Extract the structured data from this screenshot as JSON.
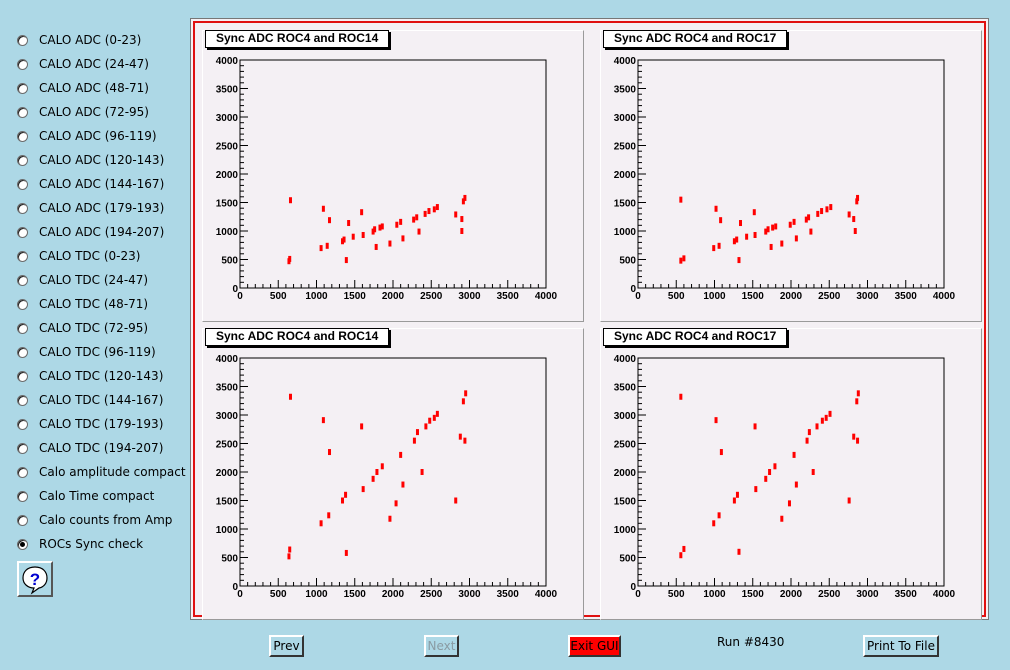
{
  "sidebar": {
    "options": [
      {
        "label": "CALO ADC (0-23)",
        "selected": false
      },
      {
        "label": "CALO ADC (24-47)",
        "selected": false
      },
      {
        "label": "CALO ADC (48-71)",
        "selected": false
      },
      {
        "label": "CALO ADC (72-95)",
        "selected": false
      },
      {
        "label": "CALO ADC (96-119)",
        "selected": false
      },
      {
        "label": "CALO ADC (120-143)",
        "selected": false
      },
      {
        "label": "CALO ADC (144-167)",
        "selected": false
      },
      {
        "label": "CALO ADC (179-193)",
        "selected": false
      },
      {
        "label": "CALO ADC (194-207)",
        "selected": false
      },
      {
        "label": "CALO TDC (0-23)",
        "selected": false
      },
      {
        "label": "CALO TDC (24-47)",
        "selected": false
      },
      {
        "label": "CALO TDC (48-71)",
        "selected": false
      },
      {
        "label": "CALO TDC (72-95)",
        "selected": false
      },
      {
        "label": "CALO TDC (96-119)",
        "selected": false
      },
      {
        "label": "CALO TDC (120-143)",
        "selected": false
      },
      {
        "label": "CALO TDC (144-167)",
        "selected": false
      },
      {
        "label": "CALO TDC (179-193)",
        "selected": false
      },
      {
        "label": "CALO TDC (194-207)",
        "selected": false
      },
      {
        "label": "Calo amplitude compact",
        "selected": false
      },
      {
        "label": "Calo Time compact",
        "selected": false
      },
      {
        "label": "Calo counts from Amp",
        "selected": false
      },
      {
        "label": "ROCs Sync check",
        "selected": true
      }
    ],
    "help_icon": "question-mark-icon",
    "help_glyph": "?"
  },
  "colors": {
    "background": "#add8e6",
    "canvas_border": "#e01010",
    "marker": "#ff0000",
    "pad_fill": "#f4f0f4"
  },
  "chart_data": [
    {
      "type": "scatter",
      "title": "Sync ADC ROC4 and ROC14",
      "xlim": [
        0,
        4000
      ],
      "ylim": [
        0,
        4000
      ],
      "xticks": [
        "0",
        "500",
        "1000",
        "1500",
        "2000",
        "2500",
        "3000",
        "3500",
        "4000"
      ],
      "yticks": [
        "0",
        "500",
        "1000",
        "1500",
        "2000",
        "2500",
        "3000",
        "3500",
        "4000"
      ],
      "color": "#ff0000",
      "points": [
        [
          640,
          470
        ],
        [
          650,
          510
        ],
        [
          660,
          1540
        ],
        [
          1060,
          700
        ],
        [
          1090,
          1390
        ],
        [
          1140,
          740
        ],
        [
          1170,
          1190
        ],
        [
          1340,
          820
        ],
        [
          1360,
          850
        ],
        [
          1390,
          490
        ],
        [
          1420,
          1140
        ],
        [
          1480,
          900
        ],
        [
          1590,
          1330
        ],
        [
          1610,
          930
        ],
        [
          1740,
          990
        ],
        [
          1760,
          1030
        ],
        [
          1780,
          720
        ],
        [
          1830,
          1060
        ],
        [
          1860,
          1080
        ],
        [
          1960,
          780
        ],
        [
          2050,
          1110
        ],
        [
          2100,
          1160
        ],
        [
          2130,
          870
        ],
        [
          2270,
          1200
        ],
        [
          2310,
          1240
        ],
        [
          2340,
          990
        ],
        [
          2420,
          1300
        ],
        [
          2470,
          1350
        ],
        [
          2540,
          1380
        ],
        [
          2580,
          1420
        ],
        [
          2820,
          1290
        ],
        [
          2900,
          1210
        ],
        [
          2920,
          1520
        ],
        [
          2940,
          1580
        ],
        [
          2900,
          1000
        ]
      ]
    },
    {
      "type": "scatter",
      "title": "Sync ADC ROC4 and ROC17",
      "xlim": [
        0,
        4000
      ],
      "ylim": [
        0,
        4000
      ],
      "xticks": [
        "0",
        "500",
        "1000",
        "1500",
        "2000",
        "2500",
        "3000",
        "3500",
        "4000"
      ],
      "yticks": [
        "0",
        "500",
        "1000",
        "1500",
        "2000",
        "2500",
        "3000",
        "3500",
        "4000"
      ],
      "color": "#ff0000",
      "points": [
        [
          560,
          480
        ],
        [
          600,
          520
        ],
        [
          560,
          1550
        ],
        [
          990,
          700
        ],
        [
          1020,
          1390
        ],
        [
          1060,
          740
        ],
        [
          1080,
          1190
        ],
        [
          1260,
          820
        ],
        [
          1290,
          850
        ],
        [
          1320,
          490
        ],
        [
          1340,
          1140
        ],
        [
          1420,
          900
        ],
        [
          1520,
          1330
        ],
        [
          1530,
          930
        ],
        [
          1670,
          990
        ],
        [
          1700,
          1030
        ],
        [
          1740,
          720
        ],
        [
          1760,
          1060
        ],
        [
          1800,
          1080
        ],
        [
          1880,
          780
        ],
        [
          1990,
          1110
        ],
        [
          2040,
          1160
        ],
        [
          2070,
          870
        ],
        [
          2200,
          1200
        ],
        [
          2230,
          1240
        ],
        [
          2260,
          990
        ],
        [
          2350,
          1300
        ],
        [
          2400,
          1350
        ],
        [
          2470,
          1380
        ],
        [
          2520,
          1420
        ],
        [
          2760,
          1290
        ],
        [
          2820,
          1210
        ],
        [
          2860,
          1520
        ],
        [
          2870,
          1580
        ],
        [
          2840,
          1000
        ]
      ]
    },
    {
      "type": "scatter",
      "title": "Sync ADC ROC4 and ROC14",
      "xlim": [
        0,
        4000
      ],
      "ylim": [
        0,
        4000
      ],
      "xticks": [
        "0",
        "500",
        "1000",
        "1500",
        "2000",
        "2500",
        "3000",
        "3500",
        "4000"
      ],
      "yticks": [
        "0",
        "500",
        "1000",
        "1500",
        "2000",
        "2500",
        "3000",
        "3500",
        "4000"
      ],
      "color": "#ff0000",
      "points": [
        [
          640,
          520
        ],
        [
          650,
          640
        ],
        [
          660,
          3320
        ],
        [
          1060,
          1100
        ],
        [
          1090,
          2910
        ],
        [
          1160,
          1240
        ],
        [
          1170,
          2350
        ],
        [
          1340,
          1500
        ],
        [
          1380,
          1600
        ],
        [
          1390,
          580
        ],
        [
          1590,
          2800
        ],
        [
          1610,
          1700
        ],
        [
          1740,
          1880
        ],
        [
          1790,
          2000
        ],
        [
          1860,
          2100
        ],
        [
          1960,
          1180
        ],
        [
          2040,
          1450
        ],
        [
          2100,
          2300
        ],
        [
          2130,
          1780
        ],
        [
          2280,
          2550
        ],
        [
          2320,
          2700
        ],
        [
          2380,
          2000
        ],
        [
          2430,
          2800
        ],
        [
          2480,
          2900
        ],
        [
          2540,
          2950
        ],
        [
          2580,
          3020
        ],
        [
          2820,
          1500
        ],
        [
          2880,
          2620
        ],
        [
          2920,
          3240
        ],
        [
          2950,
          3380
        ],
        [
          2940,
          2550
        ]
      ]
    },
    {
      "type": "scatter",
      "title": "Sync ADC ROC4 and ROC17",
      "xlim": [
        0,
        4000
      ],
      "ylim": [
        0,
        4000
      ],
      "xticks": [
        "0",
        "500",
        "1000",
        "1500",
        "2000",
        "2500",
        "3000",
        "3500",
        "4000"
      ],
      "yticks": [
        "0",
        "500",
        "1000",
        "1500",
        "2000",
        "2500",
        "3000",
        "3500",
        "4000"
      ],
      "color": "#ff0000",
      "points": [
        [
          560,
          540
        ],
        [
          600,
          650
        ],
        [
          560,
          3320
        ],
        [
          990,
          1100
        ],
        [
          1020,
          2910
        ],
        [
          1060,
          1240
        ],
        [
          1090,
          2350
        ],
        [
          1260,
          1500
        ],
        [
          1300,
          1600
        ],
        [
          1320,
          600
        ],
        [
          1530,
          2800
        ],
        [
          1540,
          1700
        ],
        [
          1670,
          1880
        ],
        [
          1720,
          2000
        ],
        [
          1790,
          2100
        ],
        [
          1880,
          1180
        ],
        [
          1980,
          1450
        ],
        [
          2040,
          2300
        ],
        [
          2070,
          1780
        ],
        [
          2210,
          2550
        ],
        [
          2240,
          2700
        ],
        [
          2290,
          2000
        ],
        [
          2340,
          2800
        ],
        [
          2410,
          2900
        ],
        [
          2460,
          2950
        ],
        [
          2510,
          3020
        ],
        [
          2760,
          1500
        ],
        [
          2820,
          2620
        ],
        [
          2860,
          3240
        ],
        [
          2880,
          3380
        ],
        [
          2870,
          2550
        ]
      ]
    }
  ],
  "footer": {
    "prev_label": "Prev",
    "next_label": "Next",
    "exit_label": "Exit GUI",
    "run_label": "Run #8430",
    "print_label": "Print To File"
  }
}
